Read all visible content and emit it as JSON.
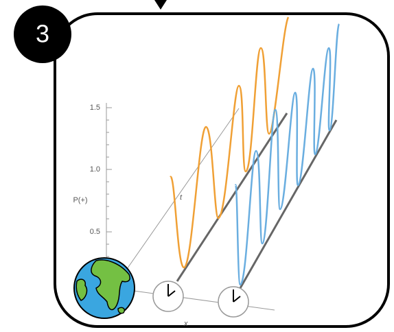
{
  "badge": "3",
  "axes": {
    "y_label": "P(+)",
    "y_ticks": [
      "1.5",
      "1.0",
      "0.5"
    ],
    "t_label": "t",
    "x_label": "x"
  }
}
